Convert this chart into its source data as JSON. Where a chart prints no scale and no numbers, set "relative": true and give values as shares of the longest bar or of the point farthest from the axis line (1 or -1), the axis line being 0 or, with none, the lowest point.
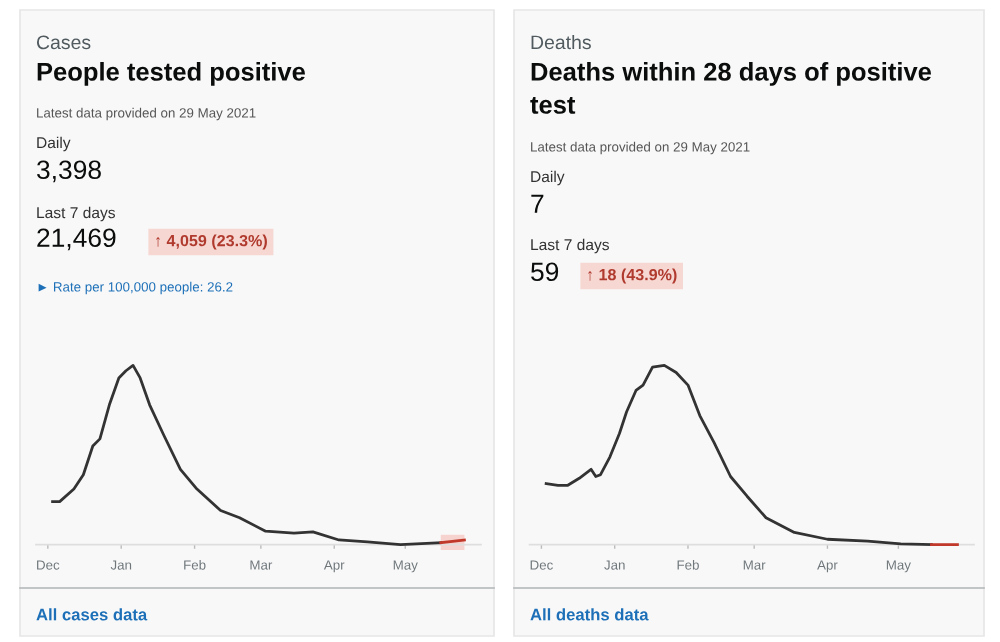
{
  "chart_data": [
    {
      "type": "line",
      "subtitle": "Cases",
      "title": "People tested positive",
      "relative": true,
      "annotations": [
        "Latest data provided on 29 May 2021",
        "Daily",
        "3,398",
        "Last 7 days",
        "21,469",
        "↑ 4,059 (23.3%)",
        "► Rate per 100,000 people: 26.2",
        "All cases data"
      ],
      "xlim": [
        "2020-11-26",
        "2021-06-02"
      ],
      "xticks": [
        {
          "value": "2020-12-01",
          "label": "Dec"
        },
        {
          "value": "2021-01-01",
          "label": "Jan"
        },
        {
          "value": "2021-02-01",
          "label": "Feb"
        },
        {
          "value": "2021-03-01",
          "label": "Mar"
        },
        {
          "value": "2021-04-01",
          "label": "Apr"
        },
        {
          "value": "2021-05-01",
          "label": "May"
        }
      ],
      "series": [
        {
          "color": "#333333",
          "x": [
            "2020-12-03",
            "2020-12-06",
            "2020-12-12",
            "2020-12-16",
            "2020-12-20",
            "2020-12-23",
            "2020-12-27",
            "2020-12-31",
            "2021-01-03",
            "2021-01-06",
            "2021-01-09",
            "2021-01-13",
            "2021-01-19",
            "2021-01-26",
            "2021-02-02",
            "2021-02-12",
            "2021-02-20",
            "2021-03-03",
            "2021-03-15",
            "2021-03-23",
            "2021-04-03",
            "2021-04-15",
            "2021-04-29",
            "2021-05-10",
            "2021-05-16"
          ],
          "values": [
            0.24,
            0.24,
            0.31,
            0.39,
            0.55,
            0.59,
            0.78,
            0.93,
            0.97,
            1,
            0.93,
            0.78,
            0.61,
            0.42,
            0.31,
            0.19,
            0.15,
            0.075,
            0.064,
            0.071,
            0.026,
            0.015,
            0,
            0.007,
            0.011
          ]
        },
        {
          "color": "#c0392b",
          "x": [
            "2021-05-16",
            "2021-05-26"
          ],
          "values": [
            0.011,
            0.026
          ]
        }
      ],
      "bands": [
        {
          "axis": "x",
          "from": "2021-05-16",
          "to": "2021-05-26",
          "color": "#f6d3ce"
        }
      ]
    },
    {
      "type": "line",
      "subtitle": "Deaths",
      "title": "Deaths within 28 days of positive test",
      "relative": true,
      "annotations": [
        "Latest data provided on 29 May 2021",
        "Daily",
        "7",
        "Last 7 days",
        "59",
        "↑ 18 (43.9%)",
        "All deaths data"
      ],
      "xlim": [
        "2020-11-26",
        "2021-06-02"
      ],
      "xticks": [
        {
          "value": "2020-12-01",
          "label": "Dec"
        },
        {
          "value": "2021-01-01",
          "label": "Jan"
        },
        {
          "value": "2021-02-01",
          "label": "Feb"
        },
        {
          "value": "2021-03-01",
          "label": "Mar"
        },
        {
          "value": "2021-04-01",
          "label": "Apr"
        },
        {
          "value": "2021-05-01",
          "label": "May"
        }
      ],
      "series": [
        {
          "color": "#333333",
          "x": [
            "2020-12-03",
            "2020-12-08",
            "2020-12-12",
            "2020-12-17",
            "2020-12-22",
            "2020-12-24",
            "2020-12-26",
            "2020-12-30",
            "2021-01-03",
            "2021-01-06",
            "2021-01-10",
            "2021-01-13",
            "2021-01-17",
            "2021-01-22",
            "2021-01-27",
            "2021-02-01",
            "2021-02-06",
            "2021-02-12",
            "2021-02-19",
            "2021-02-26",
            "2021-03-06",
            "2021-03-18",
            "2021-04-01",
            "2021-04-18",
            "2021-05-02",
            "2021-05-15"
          ],
          "values": [
            0.34,
            0.33,
            0.33,
            0.37,
            0.42,
            0.38,
            0.39,
            0.49,
            0.62,
            0.74,
            0.86,
            0.89,
            0.99,
            1,
            0.96,
            0.89,
            0.72,
            0.57,
            0.38,
            0.27,
            0.15,
            0.068,
            0.03,
            0.019,
            0.004,
            0
          ]
        },
        {
          "color": "#c0392b",
          "x": [
            "2021-05-15",
            "2021-05-26"
          ],
          "values": [
            0,
            0
          ]
        }
      ]
    }
  ]
}
